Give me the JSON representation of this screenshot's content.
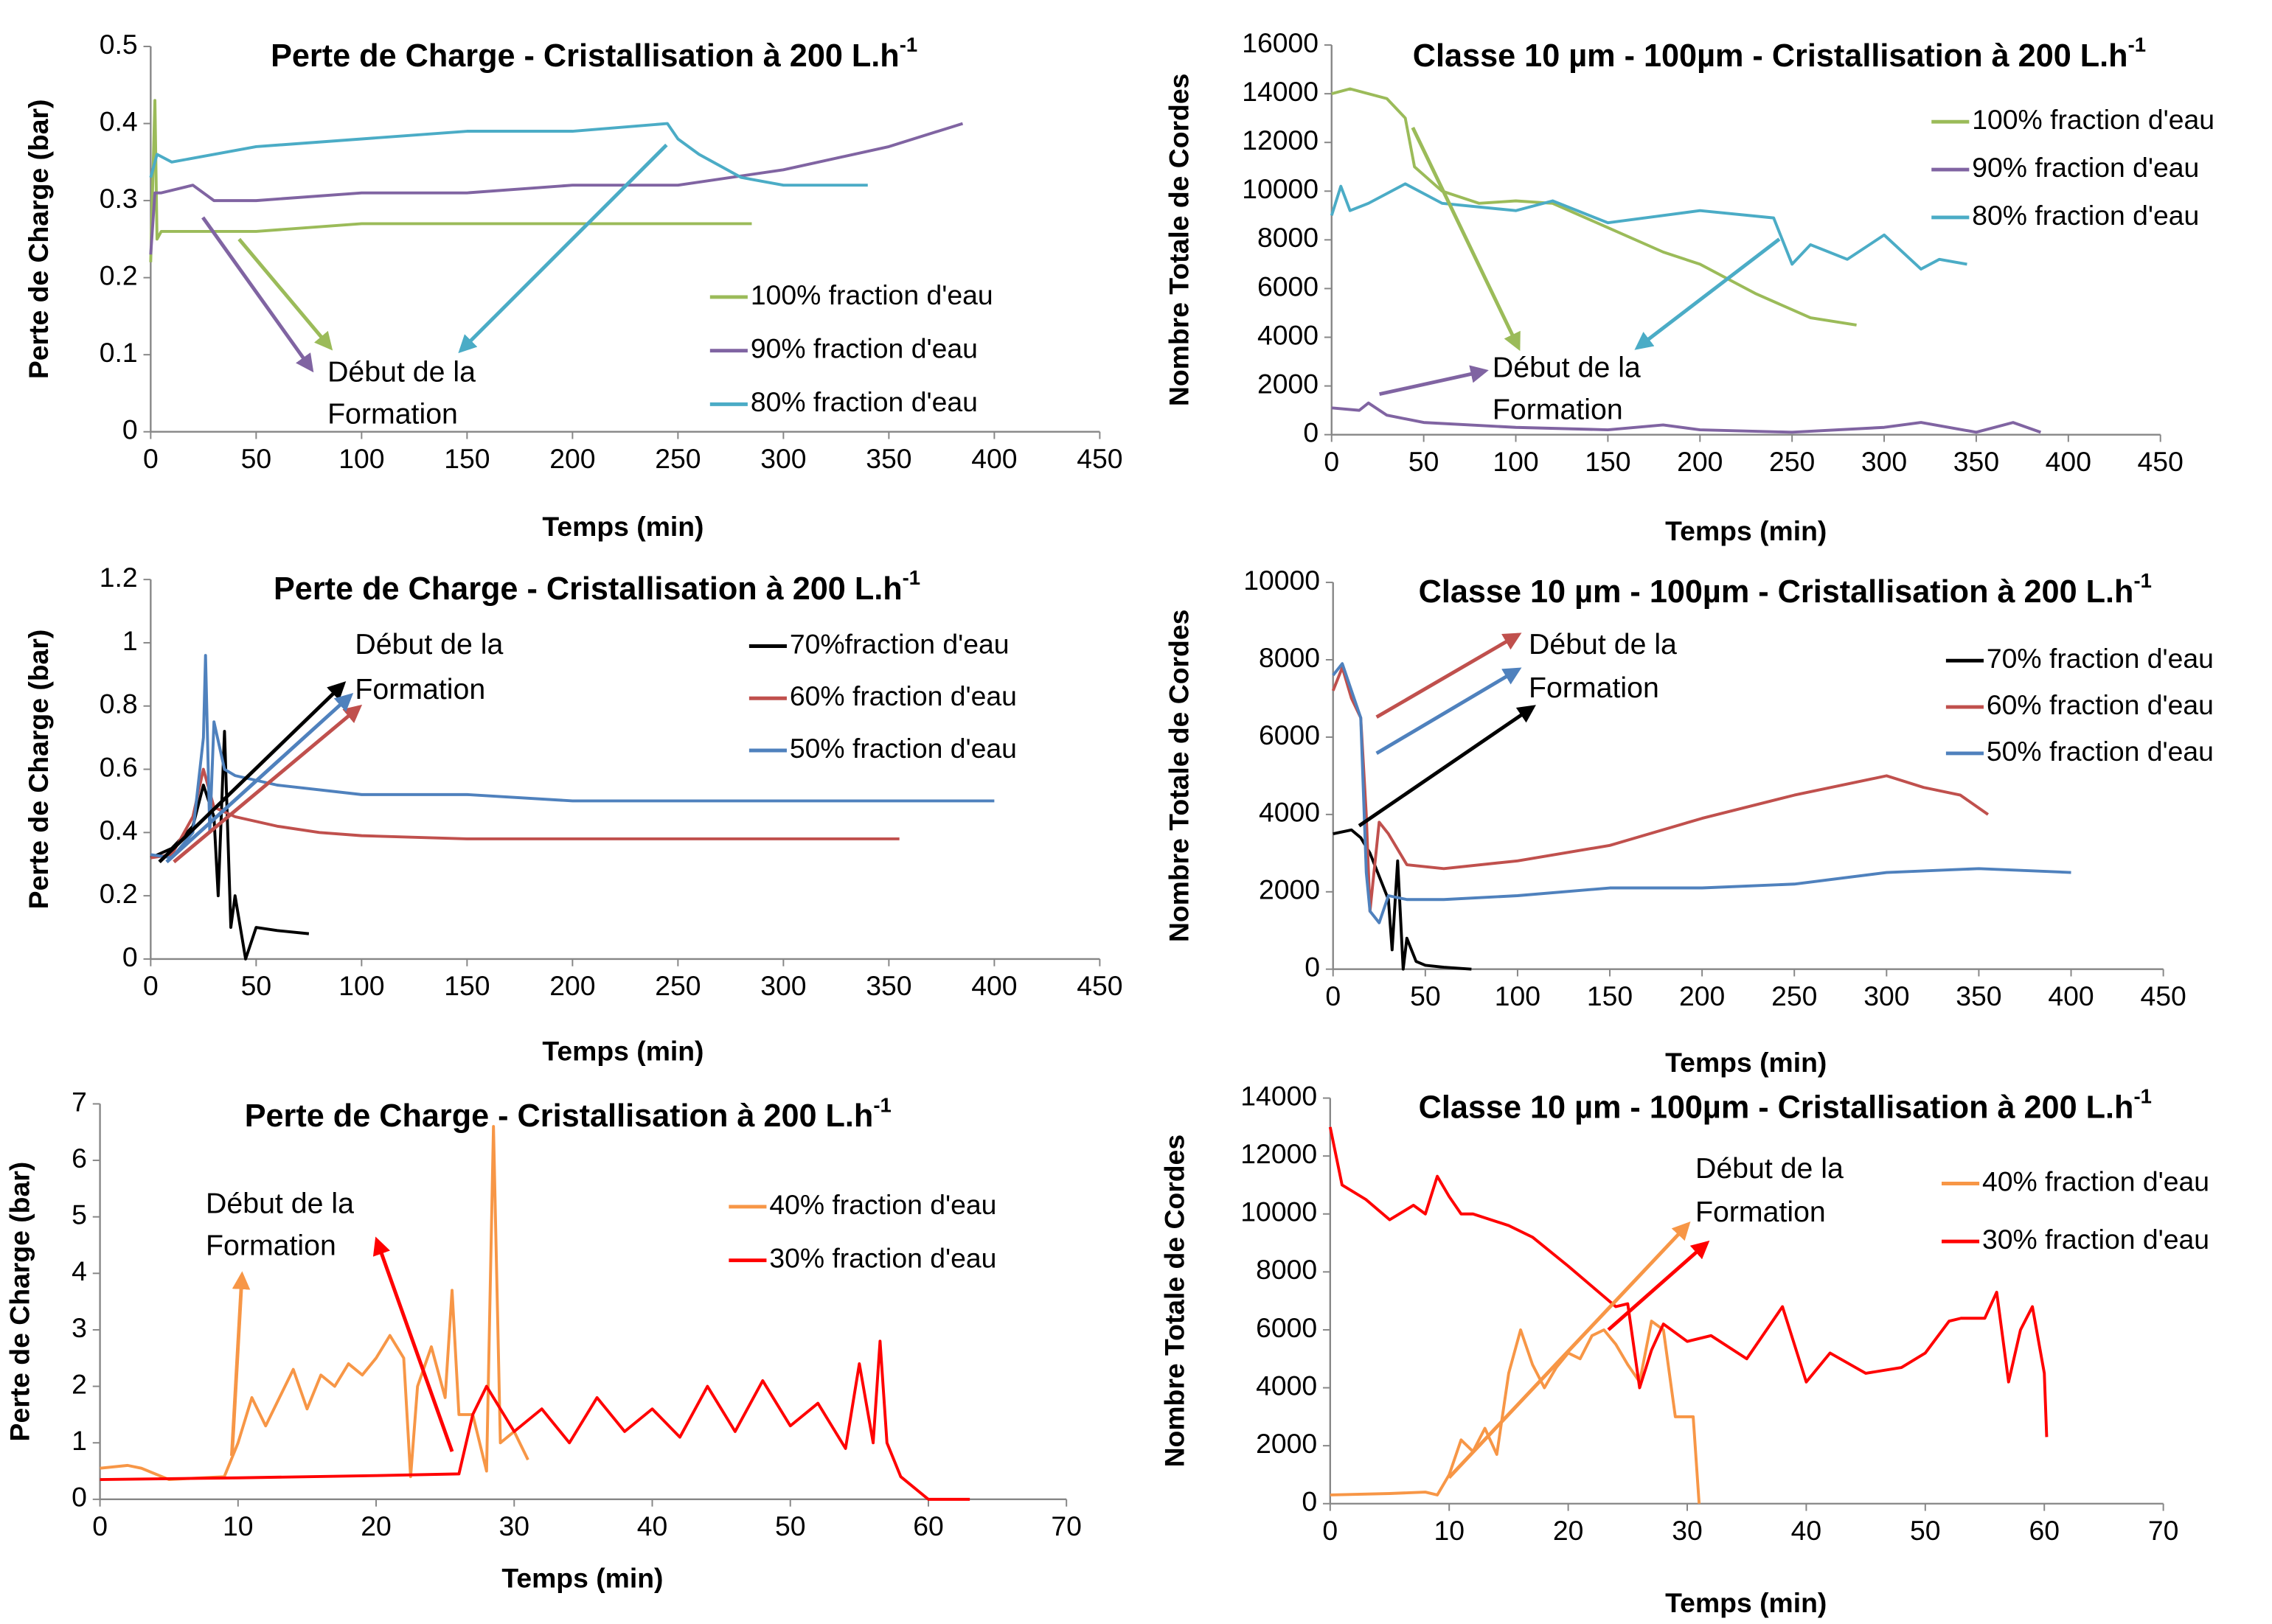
{
  "chart_data": [
    {
      "type": "line",
      "title": "Perte de Charge - Cristallisation à 200 L.h",
      "title_sup": "-1",
      "xlabel": "Temps (min)",
      "ylabel": "Perte de Charge (bar)",
      "annotation": [
        "Début de la",
        "Formation"
      ],
      "xlim": [
        0,
        450
      ],
      "xticks": [
        0,
        50,
        100,
        150,
        200,
        250,
        300,
        350,
        400,
        450
      ],
      "ylim": [
        0,
        0.5
      ],
      "yticks": [
        0,
        0.1,
        0.2,
        0.3,
        0.4,
        0.5
      ],
      "series": [
        {
          "name": "100% fraction d'eau",
          "color": "#9bbb59",
          "x": [
            0,
            2,
            3,
            5,
            10,
            50,
            100,
            150,
            200,
            250,
            285
          ],
          "values": [
            0.22,
            0.43,
            0.25,
            0.26,
            0.26,
            0.26,
            0.27,
            0.27,
            0.27,
            0.27,
            0.27
          ]
        },
        {
          "name": "90% fraction d'eau",
          "color": "#8064a2",
          "x": [
            0,
            2,
            5,
            20,
            30,
            50,
            100,
            150,
            200,
            250,
            300,
            350,
            385
          ],
          "values": [
            0.23,
            0.31,
            0.31,
            0.32,
            0.3,
            0.3,
            0.31,
            0.31,
            0.32,
            0.32,
            0.34,
            0.37,
            0.4
          ]
        },
        {
          "name": "80% fraction d'eau",
          "color": "#4bacc6",
          "x": [
            0,
            3,
            10,
            50,
            100,
            150,
            200,
            245,
            250,
            260,
            280,
            300,
            340
          ],
          "values": [
            0.33,
            0.36,
            0.35,
            0.37,
            0.38,
            0.39,
            0.39,
            0.4,
            0.38,
            0.36,
            0.33,
            0.32,
            0.32
          ]
        }
      ]
    },
    {
      "type": "line",
      "title": "Classe 10 µm - 100µm - Cristallisation à 200 L.h",
      "title_sup": "-1",
      "xlabel": "Temps (min)",
      "ylabel": "Nombre Totale de Cordes",
      "annotation": [
        "Début de la",
        "Formation"
      ],
      "xlim": [
        0,
        450
      ],
      "xticks": [
        0,
        50,
        100,
        150,
        200,
        250,
        300,
        350,
        400,
        450
      ],
      "ylim": [
        0,
        16000
      ],
      "yticks": [
        0,
        2000,
        4000,
        6000,
        8000,
        10000,
        12000,
        14000,
        16000
      ],
      "series": [
        {
          "name": "100% fraction d'eau",
          "color": "#9bbb59",
          "x": [
            0,
            10,
            30,
            40,
            45,
            60,
            80,
            100,
            120,
            150,
            180,
            200,
            230,
            260,
            285
          ],
          "values": [
            14000,
            14200,
            13800,
            13000,
            11000,
            10000,
            9500,
            9600,
            9500,
            8500,
            7500,
            7000,
            5800,
            4800,
            4500
          ]
        },
        {
          "name": "90% fraction d'eau",
          "color": "#8064a2",
          "x": [
            0,
            15,
            20,
            30,
            50,
            100,
            150,
            180,
            200,
            250,
            300,
            320,
            350,
            370,
            385
          ],
          "values": [
            1100,
            1000,
            1300,
            800,
            500,
            300,
            200,
            400,
            200,
            100,
            300,
            500,
            100,
            500,
            100
          ]
        },
        {
          "name": "80% fraction d'eau",
          "color": "#4bacc6",
          "x": [
            0,
            5,
            10,
            20,
            40,
            60,
            100,
            120,
            150,
            180,
            200,
            240,
            250,
            260,
            280,
            300,
            320,
            330,
            345
          ],
          "values": [
            9000,
            10200,
            9200,
            9500,
            10300,
            9500,
            9200,
            9600,
            8700,
            9000,
            9200,
            8900,
            7000,
            7800,
            7200,
            8200,
            6800,
            7200,
            7000
          ]
        }
      ]
    },
    {
      "type": "line",
      "title": "Perte de Charge - Cristallisation à 200 L.h",
      "title_sup": "-1",
      "xlabel": "Temps (min)",
      "ylabel": "Perte de Charge (bar)",
      "annotation": [
        "Début de la",
        "Formation"
      ],
      "xlim": [
        0,
        450
      ],
      "xticks": [
        0,
        50,
        100,
        150,
        200,
        250,
        300,
        350,
        400,
        450
      ],
      "ylim": [
        0,
        1.2
      ],
      "yticks": [
        0,
        0.2,
        0.4,
        0.6,
        0.8,
        1,
        1.2
      ],
      "series": [
        {
          "name": "70%fraction d'eau",
          "color": "#000000",
          "x": [
            0,
            10,
            20,
            25,
            30,
            32,
            35,
            38,
            40,
            45,
            50,
            60,
            75
          ],
          "values": [
            0.32,
            0.35,
            0.42,
            0.55,
            0.45,
            0.2,
            0.72,
            0.1,
            0.2,
            0,
            0.1,
            0.09,
            0.08
          ]
        },
        {
          "name": "60% fraction d'eau",
          "color": "#c0504d",
          "x": [
            0,
            10,
            20,
            25,
            30,
            40,
            60,
            80,
            100,
            150,
            200,
            300,
            355
          ],
          "values": [
            0.32,
            0.33,
            0.45,
            0.6,
            0.48,
            0.45,
            0.42,
            0.4,
            0.39,
            0.38,
            0.38,
            0.38,
            0.38
          ]
        },
        {
          "name": "50% fraction d'eau",
          "color": "#4f81bd",
          "x": [
            0,
            10,
            20,
            25,
            26,
            28,
            30,
            35,
            40,
            60,
            100,
            150,
            200,
            250,
            300,
            350,
            400
          ],
          "values": [
            0.33,
            0.32,
            0.4,
            0.7,
            0.96,
            0.4,
            0.75,
            0.6,
            0.58,
            0.55,
            0.52,
            0.52,
            0.5,
            0.5,
            0.5,
            0.5,
            0.5
          ]
        }
      ]
    },
    {
      "type": "line",
      "title": "Classe 10 µm - 100µm - Cristallisation à 200 L.h",
      "title_sup": "-1",
      "xlabel": "Temps (min)",
      "ylabel": "Nombre Totale de Cordes",
      "annotation": [
        "Début de la",
        "Formation"
      ],
      "xlim": [
        0,
        450
      ],
      "xticks": [
        0,
        50,
        100,
        150,
        200,
        250,
        300,
        350,
        400,
        450
      ],
      "ylim": [
        0,
        10000
      ],
      "yticks": [
        0,
        2000,
        4000,
        6000,
        8000,
        10000
      ],
      "series": [
        {
          "name": "70% fraction d'eau",
          "color": "#000000",
          "x": [
            0,
            10,
            15,
            20,
            25,
            30,
            32,
            35,
            38,
            40,
            45,
            50,
            60,
            75
          ],
          "values": [
            3500,
            3600,
            3400,
            3000,
            2400,
            1800,
            500,
            2800,
            0,
            800,
            200,
            100,
            50,
            0
          ]
        },
        {
          "name": "60% fraction d'eau",
          "color": "#c0504d",
          "x": [
            0,
            5,
            10,
            15,
            18,
            20,
            25,
            30,
            40,
            60,
            100,
            150,
            200,
            250,
            300,
            320,
            340,
            355
          ],
          "values": [
            7200,
            7800,
            7000,
            6500,
            4000,
            1500,
            3800,
            3500,
            2700,
            2600,
            2800,
            3200,
            3900,
            4500,
            5000,
            4700,
            4500,
            4000
          ]
        },
        {
          "name": "50% fraction d'eau",
          "color": "#4f81bd",
          "x": [
            0,
            5,
            10,
            15,
            18,
            20,
            25,
            30,
            40,
            60,
            100,
            150,
            200,
            250,
            300,
            350,
            400
          ],
          "values": [
            7600,
            7900,
            7200,
            6500,
            2500,
            1500,
            1200,
            1900,
            1800,
            1800,
            1900,
            2100,
            2100,
            2200,
            2500,
            2600,
            2500
          ]
        }
      ]
    },
    {
      "type": "line",
      "title": "Perte de Charge - Cristallisation à 200 L.h",
      "title_sup": "-1",
      "xlabel": "Temps (min)",
      "ylabel": "Perte de Charge (bar)",
      "annotation": [
        "Début de la",
        "Formation"
      ],
      "xlim": [
        0,
        70
      ],
      "xticks": [
        0,
        10,
        20,
        30,
        40,
        50,
        60,
        70
      ],
      "ylim": [
        0,
        7
      ],
      "yticks": [
        0,
        1,
        2,
        3,
        4,
        5,
        6,
        7
      ],
      "series": [
        {
          "name": "40% fraction d'eau",
          "color": "#f79646",
          "x": [
            0,
            2,
            3,
            5,
            9,
            10,
            11,
            12,
            13,
            14,
            15,
            16,
            17,
            18,
            19,
            20,
            21,
            22,
            22.5,
            23,
            24,
            25,
            25.5,
            26,
            27,
            28,
            28.5,
            29,
            30,
            31
          ],
          "values": [
            0.55,
            0.6,
            0.55,
            0.35,
            0.4,
            1,
            1.8,
            1.3,
            1.8,
            2.3,
            1.6,
            2.2,
            2,
            2.4,
            2.2,
            2.5,
            2.9,
            2.5,
            0.4,
            2,
            2.7,
            1.8,
            3.7,
            1.5,
            1.5,
            0.5,
            6.6,
            1,
            1.2,
            0.7
          ]
        },
        {
          "name": "30% fraction d'eau",
          "color": "#ff0000",
          "x": [
            0,
            10,
            20,
            26,
            27,
            28,
            30,
            32,
            34,
            36,
            38,
            40,
            42,
            44,
            46,
            48,
            50,
            52,
            54,
            55,
            56,
            56.5,
            57,
            58,
            60,
            63
          ],
          "values": [
            0.35,
            0.38,
            0.42,
            0.45,
            1.5,
            2,
            1.2,
            1.6,
            1,
            1.8,
            1.2,
            1.6,
            1.1,
            2,
            1.2,
            2.1,
            1.3,
            1.7,
            0.9,
            2.4,
            1,
            2.8,
            1,
            0.4,
            0,
            0
          ]
        }
      ]
    },
    {
      "type": "line",
      "title": "Classe 10 µm - 100µm - Cristallisation à 200 L.h",
      "title_sup": "-1",
      "xlabel": "Temps (min)",
      "ylabel": "Nombre Totale de Cordes",
      "annotation": [
        "Début de la",
        "Formation"
      ],
      "xlim": [
        0,
        70
      ],
      "xticks": [
        0,
        10,
        20,
        30,
        40,
        50,
        60,
        70
      ],
      "ylim": [
        0,
        14000
      ],
      "yticks": [
        0,
        2000,
        4000,
        6000,
        8000,
        10000,
        12000,
        14000
      ],
      "series": [
        {
          "name": "40% fraction d'eau",
          "color": "#f79646",
          "x": [
            0,
            5,
            8,
            9,
            10,
            11,
            12,
            13,
            14,
            15,
            16,
            17,
            18,
            19,
            20,
            21,
            22,
            23,
            24,
            25,
            26,
            27,
            28,
            29,
            30,
            30.5,
            31
          ],
          "values": [
            300,
            350,
            400,
            300,
            1000,
            2200,
            1800,
            2600,
            1700,
            4500,
            6000,
            4800,
            4000,
            4700,
            5200,
            5000,
            5800,
            6000,
            5500,
            4800,
            4200,
            6300,
            6000,
            3000,
            3000,
            3000,
            0
          ]
        },
        {
          "name": "30% fraction d'eau",
          "color": "#ff0000",
          "x": [
            0,
            1,
            3,
            5,
            7,
            8,
            9,
            10,
            11,
            12,
            15,
            17,
            20,
            22,
            24,
            25,
            26,
            27,
            28,
            30,
            32,
            35,
            38,
            40,
            42,
            45,
            48,
            50,
            52,
            53,
            55,
            56,
            57,
            58,
            59,
            60,
            60.2
          ],
          "values": [
            13000,
            11000,
            10500,
            9800,
            10300,
            10000,
            11300,
            10600,
            10000,
            10000,
            9600,
            9200,
            8200,
            7500,
            6800,
            6900,
            4000,
            5300,
            6200,
            5600,
            5800,
            5000,
            6800,
            4200,
            5200,
            4500,
            4700,
            5200,
            6300,
            6400,
            6400,
            7300,
            4200,
            6000,
            6800,
            4500,
            2300
          ]
        }
      ]
    }
  ]
}
